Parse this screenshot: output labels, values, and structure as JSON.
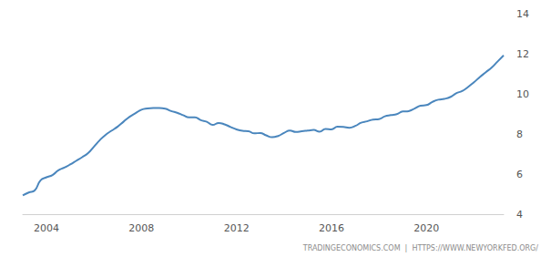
{
  "chart_data": {
    "type": "line",
    "annotations": [
      "TRADINGECONOMICS.COM  |  HTTPS://WWW.NEWYORKFED.ORG/"
    ],
    "x": [
      2003,
      2003.25,
      2003.5,
      2003.75,
      2004,
      2004.25,
      2004.5,
      2004.75,
      2005,
      2005.25,
      2005.5,
      2005.75,
      2006,
      2006.25,
      2006.5,
      2006.75,
      2007,
      2007.25,
      2007.5,
      2007.75,
      2008,
      2008.25,
      2008.5,
      2008.75,
      2009,
      2009.25,
      2009.5,
      2009.75,
      2010,
      2010.25,
      2010.5,
      2010.75,
      2011,
      2011.25,
      2011.5,
      2011.75,
      2012,
      2012.25,
      2012.5,
      2012.75,
      2013,
      2013.25,
      2013.5,
      2013.75,
      2014,
      2014.25,
      2014.5,
      2014.75,
      2015,
      2015.25,
      2015.5,
      2015.75,
      2016,
      2016.25,
      2016.5,
      2016.75,
      2017,
      2017.25,
      2017.5,
      2017.75,
      2018,
      2018.25,
      2018.5,
      2018.75,
      2019,
      2019.25,
      2019.5,
      2019.75,
      2020,
      2020.25,
      2020.5,
      2020.75,
      2021,
      2021.25,
      2021.5,
      2021.75,
      2022,
      2022.25,
      2022.5,
      2022.75,
      2023,
      2023.25
    ],
    "values": [
      4.94,
      5.08,
      5.18,
      5.69,
      5.84,
      5.95,
      6.19,
      6.32,
      6.48,
      6.66,
      6.84,
      7.04,
      7.37,
      7.7,
      7.97,
      8.17,
      8.37,
      8.62,
      8.86,
      9.04,
      9.21,
      9.27,
      9.29,
      9.29,
      9.26,
      9.14,
      9.06,
      8.94,
      8.83,
      8.83,
      8.69,
      8.61,
      8.45,
      8.55,
      8.48,
      8.35,
      8.23,
      8.16,
      8.14,
      8.03,
      8.05,
      7.93,
      7.84,
      7.9,
      8.05,
      8.17,
      8.1,
      8.14,
      8.17,
      8.2,
      8.11,
      8.25,
      8.23,
      8.36,
      8.35,
      8.31,
      8.4,
      8.56,
      8.63,
      8.72,
      8.74,
      8.88,
      8.94,
      8.99,
      9.12,
      9.14,
      9.27,
      9.41,
      9.44,
      9.6,
      9.71,
      9.75,
      9.84,
      10.03,
      10.14,
      10.34,
      10.58,
      10.84,
      11.08,
      11.32,
      11.62,
      11.92
    ],
    "color": "#4a86bd",
    "xlim": [
      2003,
      2023.25
    ],
    "xticks": [
      2004,
      2008,
      2012,
      2016,
      2020
    ],
    "ylim": [
      4,
      14
    ],
    "yticks": [
      4,
      6,
      8,
      10,
      12,
      14
    ],
    "grid": false
  }
}
